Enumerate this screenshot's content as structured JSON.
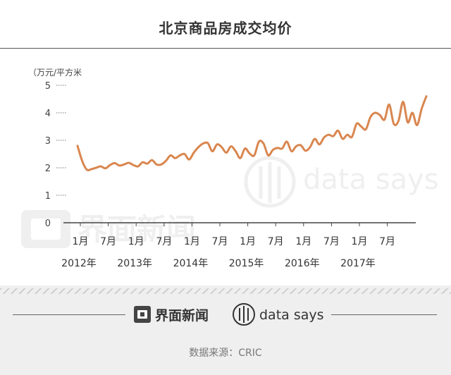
{
  "header": {
    "title": "北京商品房成交均价"
  },
  "footer": {
    "brand_jiemian": "界面新闻",
    "brand_datasays": "data says",
    "source": "数据来源：CRIC"
  },
  "watermark": {
    "jiemian": "界面新闻",
    "datasays": "data says"
  },
  "colors": {
    "line": "#D9864F",
    "axis": "#444444",
    "title": "#333333"
  },
  "chart_data": {
    "type": "line",
    "title": "北京商品房成交均价",
    "ylabel": "（万元/平方米",
    "ylim": [
      0,
      5
    ],
    "y_ticks": [
      "0",
      "1",
      "2",
      "3",
      "4",
      "5"
    ],
    "x_tick_labels": [
      "1月",
      "7月",
      "1月",
      "7月",
      "1月",
      "7月",
      "1月",
      "7月",
      "1月",
      "7月",
      "1月",
      "7月"
    ],
    "year_labels": [
      "2012年",
      "2013年",
      "2014年",
      "2015年",
      "2016年",
      "2017年"
    ],
    "x_start": "2012-01",
    "series": [
      {
        "values": [
          2.8,
          2.25,
          1.93,
          1.95,
          2.0,
          2.05,
          1.98,
          2.1,
          2.17,
          2.08,
          2.12,
          2.18,
          2.1,
          2.05,
          2.2,
          2.15,
          2.28,
          2.12,
          2.12,
          2.25,
          2.45,
          2.35,
          2.45,
          2.5,
          2.3,
          2.55,
          2.75,
          2.88,
          2.9,
          2.6,
          2.85,
          2.75,
          2.55,
          2.78,
          2.6,
          2.35,
          2.7,
          2.52,
          2.45,
          2.95,
          2.88,
          2.45,
          2.65,
          2.72,
          2.7,
          2.95,
          2.6,
          2.78,
          2.82,
          2.62,
          2.75,
          3.05,
          2.85,
          3.1,
          3.2,
          3.15,
          3.35,
          3.05,
          3.2,
          3.12,
          3.6,
          3.5,
          3.4,
          3.85,
          4.0,
          3.92,
          3.75,
          4.3,
          3.6,
          3.7,
          4.4,
          3.65,
          4.0,
          3.55,
          4.15,
          4.6
        ]
      }
    ]
  }
}
